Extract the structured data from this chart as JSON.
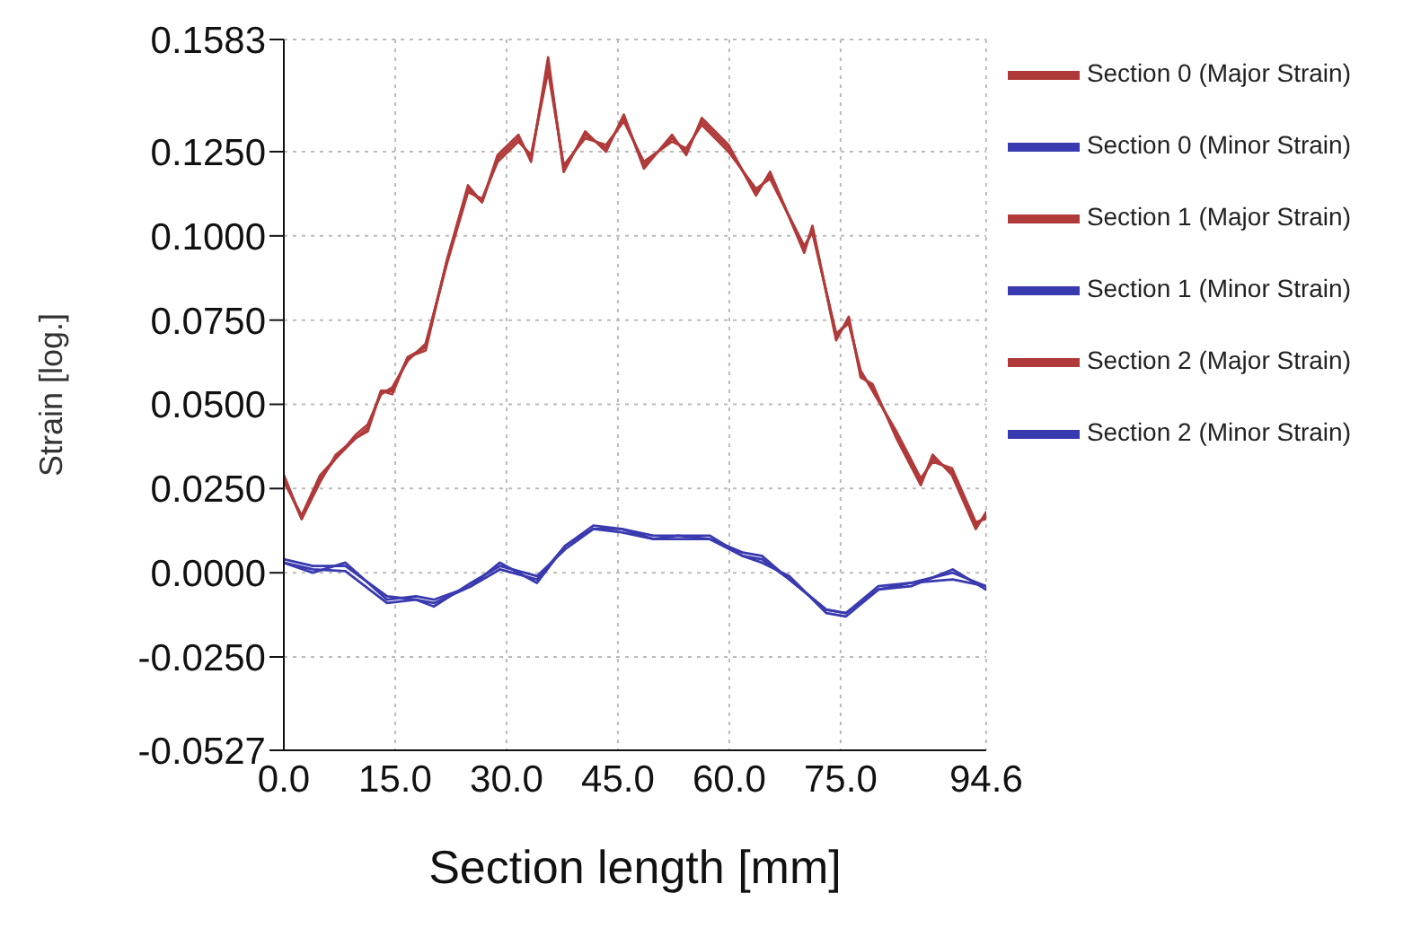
{
  "chart_data": {
    "type": "line",
    "xlabel": "Section length [mm]",
    "ylabel": "Strain [log.]",
    "xlim": [
      0,
      94.6
    ],
    "ylim": [
      -0.0527,
      0.1583
    ],
    "xticks": [
      {
        "value": 0,
        "label": "0.0"
      },
      {
        "value": 15,
        "label": "15.0"
      },
      {
        "value": 30,
        "label": "30.0"
      },
      {
        "value": 45,
        "label": "45.0"
      },
      {
        "value": 60,
        "label": "60.0"
      },
      {
        "value": 75,
        "label": "75.0"
      },
      {
        "value": 94.6,
        "label": "94.6"
      }
    ],
    "yticks": [
      {
        "value": -0.0527,
        "label": "-0.0527"
      },
      {
        "value": -0.025,
        "label": "-0.0250"
      },
      {
        "value": 0,
        "label": "0.0000"
      },
      {
        "value": 0.025,
        "label": "0.0250"
      },
      {
        "value": 0.05,
        "label": "0.0500"
      },
      {
        "value": 0.075,
        "label": "0.0750"
      },
      {
        "value": 0.1,
        "label": "0.1000"
      },
      {
        "value": 0.125,
        "label": "0.1250"
      },
      {
        "value": 0.1583,
        "label": "0.1583"
      }
    ],
    "grid": true,
    "legend": "right",
    "marker": "none",
    "line_style": "solid",
    "series": [
      {
        "name": "Section 0 (Major Strain)",
        "color": "#b03a3a",
        "x": [
          0,
          2.4,
          4.9,
          7,
          9.7,
          11.3,
          13.1,
          14.6,
          16.7,
          19.1,
          22,
          24.8,
          26.7,
          28.8,
          31.6,
          33.3,
          35.6,
          37.7,
          40.6,
          43.4,
          45.8,
          48.5,
          52.3,
          54.2,
          56.3,
          59.9,
          63.6,
          65.5,
          70.1,
          71.2,
          74.4,
          76.1,
          77.7,
          79.3,
          82.5,
          85.8,
          87.4,
          90,
          93.2,
          94.6
        ],
        "values": [
          0.028,
          0.016,
          0.028,
          0.034,
          0.04,
          0.043,
          0.054,
          0.054,
          0.064,
          0.067,
          0.093,
          0.114,
          0.11,
          0.123,
          0.129,
          0.123,
          0.151,
          0.12,
          0.13,
          0.126,
          0.135,
          0.121,
          0.129,
          0.125,
          0.134,
          0.126,
          0.113,
          0.118,
          0.096,
          0.102,
          0.07,
          0.075,
          0.059,
          0.055,
          0.041,
          0.027,
          0.034,
          0.03,
          0.014,
          0.017
        ]
      },
      {
        "name": "Section 0 (Minor Strain)",
        "color": "#3a3ab0",
        "x": [
          0,
          3.9,
          8.3,
          13.9,
          17.8,
          20.2,
          25.2,
          29.1,
          34.1,
          37.9,
          41.7,
          45.5,
          49.8,
          53.1,
          57.4,
          61.8,
          64.4,
          68.1,
          73.1,
          75.7,
          80.1,
          84.5,
          90.1,
          94.6
        ],
        "values": [
          0.003,
          0.001,
          0.0005,
          -0.009,
          -0.008,
          -0.009,
          -0.004,
          0.001,
          -0.002,
          0.008,
          0.013,
          0.013,
          0.01,
          0.011,
          0.01,
          0.005,
          0.004,
          -0.002,
          -0.011,
          -0.012,
          -0.005,
          -0.003,
          -0.002,
          -0.004
        ]
      },
      {
        "name": "Section 1 (Major Strain)",
        "color": "#b03a3a",
        "x": [
          0,
          2.4,
          4.9,
          7,
          9.7,
          11.3,
          13.1,
          14.6,
          16.7,
          19.1,
          22,
          24.8,
          26.7,
          28.8,
          31.6,
          33.3,
          35.6,
          37.7,
          40.6,
          43.4,
          45.8,
          48.5,
          52.3,
          54.2,
          56.3,
          59.9,
          63.6,
          65.5,
          70.1,
          71.2,
          74.4,
          76.1,
          77.7,
          79.3,
          82.5,
          85.8,
          87.4,
          90,
          93.2,
          94.6
        ],
        "values": [
          0.027,
          0.017,
          0.029,
          0.034,
          0.041,
          0.044,
          0.053,
          0.055,
          0.063,
          0.068,
          0.092,
          0.113,
          0.111,
          0.122,
          0.128,
          0.124,
          0.149,
          0.121,
          0.129,
          0.127,
          0.134,
          0.122,
          0.128,
          0.126,
          0.133,
          0.125,
          0.114,
          0.117,
          0.097,
          0.101,
          0.071,
          0.074,
          0.06,
          0.054,
          0.042,
          0.028,
          0.033,
          0.031,
          0.015,
          0.016
        ]
      },
      {
        "name": "Section 1 (Minor Strain)",
        "color": "#3a3ab0",
        "x": [
          0,
          3.9,
          8.3,
          13.9,
          17.8,
          20.2,
          25.2,
          29.1,
          34.1,
          37.9,
          41.7,
          45.5,
          49.8,
          53.1,
          57.4,
          61.8,
          64.4,
          68.1,
          73.1,
          75.7,
          80.1,
          84.5,
          90.1,
          94.6
        ],
        "values": [
          0.004,
          0.002,
          0.002,
          -0.007,
          -0.008,
          -0.01,
          -0.003,
          0.002,
          -0.001,
          0.007,
          0.013,
          0.012,
          0.01,
          0.01,
          0.01,
          0.006,
          0.005,
          -0.002,
          -0.011,
          -0.012,
          -0.004,
          -0.003,
          0.0,
          -0.004
        ]
      },
      {
        "name": "Section 2 (Major Strain)",
        "color": "#b03a3a",
        "x": [
          0,
          2.4,
          4.9,
          7,
          9.7,
          11.3,
          13.1,
          14.6,
          16.7,
          19.1,
          22,
          24.8,
          26.7,
          28.8,
          31.6,
          33.3,
          35.6,
          37.7,
          40.6,
          43.4,
          45.8,
          48.5,
          52.3,
          54.2,
          56.3,
          59.9,
          63.6,
          65.5,
          70.1,
          71.2,
          74.4,
          76.1,
          77.7,
          79.3,
          82.5,
          85.8,
          87.4,
          90,
          93.2,
          94.6
        ],
        "values": [
          0.029,
          0.016,
          0.027,
          0.035,
          0.04,
          0.042,
          0.054,
          0.053,
          0.064,
          0.066,
          0.093,
          0.115,
          0.11,
          0.124,
          0.13,
          0.122,
          0.153,
          0.119,
          0.131,
          0.125,
          0.136,
          0.12,
          0.13,
          0.124,
          0.135,
          0.127,
          0.112,
          0.119,
          0.095,
          0.103,
          0.069,
          0.076,
          0.058,
          0.056,
          0.04,
          0.026,
          0.035,
          0.029,
          0.013,
          0.018
        ]
      },
      {
        "name": "Section 2 (Minor Strain)",
        "color": "#3a3ab0",
        "x": [
          0,
          3.9,
          8.3,
          13.9,
          17.8,
          20.2,
          25.2,
          29.1,
          34.1,
          37.9,
          41.7,
          45.5,
          49.8,
          53.1,
          57.4,
          61.8,
          64.4,
          68.1,
          73.1,
          75.7,
          80.1,
          84.5,
          90.1,
          94.6
        ],
        "values": [
          0.003,
          0.0,
          0.003,
          -0.008,
          -0.007,
          -0.008,
          -0.004,
          0.003,
          -0.003,
          0.008,
          0.014,
          0.013,
          0.011,
          0.011,
          0.011,
          0.005,
          0.003,
          -0.001,
          -0.012,
          -0.013,
          -0.005,
          -0.004,
          0.001,
          -0.005
        ]
      }
    ]
  }
}
